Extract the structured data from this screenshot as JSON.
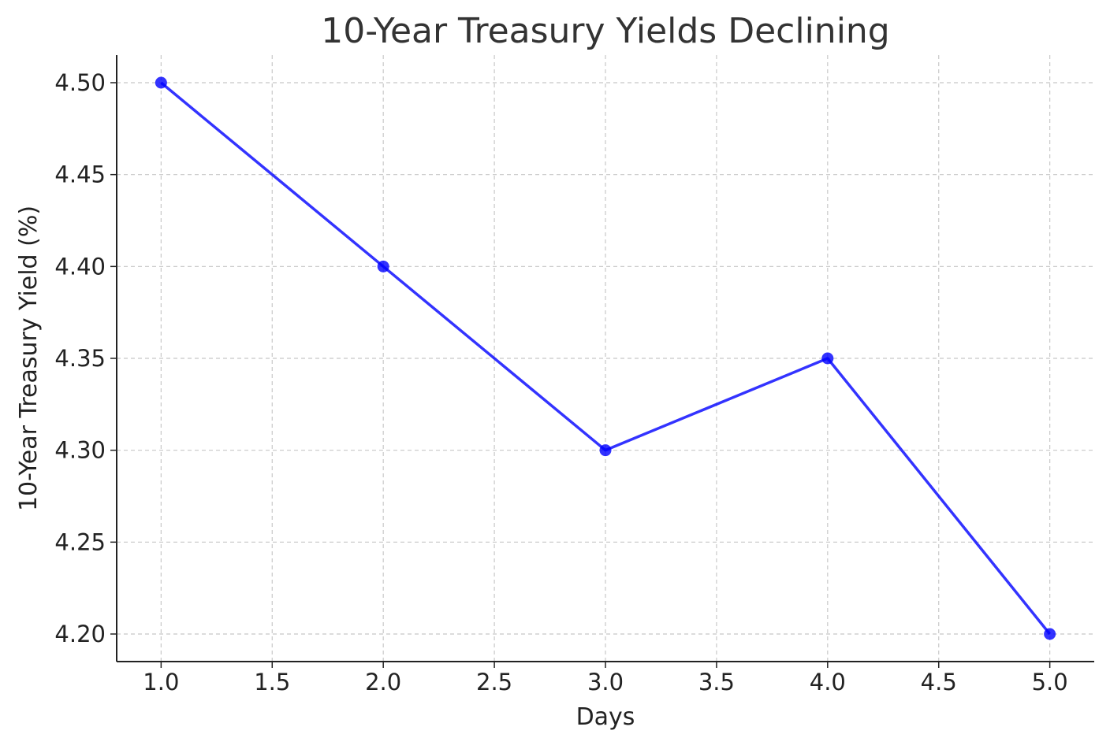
{
  "chart_data": {
    "type": "line",
    "title": "10-Year Treasury Yields Declining",
    "xlabel": "Days",
    "ylabel": "10-Year Treasury Yield (%)",
    "x": [
      1,
      2,
      3,
      4,
      5
    ],
    "series": [
      {
        "values": [
          4.5,
          4.4,
          4.3,
          4.35,
          4.2
        ],
        "color": "#0000ff",
        "marker": "circle"
      }
    ],
    "xlim": [
      0.8,
      5.2
    ],
    "ylim": [
      4.185,
      4.515
    ],
    "x_ticks": [
      "1.0",
      "1.5",
      "2.0",
      "2.5",
      "3.0",
      "3.5",
      "4.0",
      "4.5",
      "5.0"
    ],
    "y_ticks": [
      "4.20",
      "4.25",
      "4.30",
      "4.35",
      "4.40",
      "4.45",
      "4.50"
    ],
    "grid": true,
    "grid_style": "dashed"
  }
}
